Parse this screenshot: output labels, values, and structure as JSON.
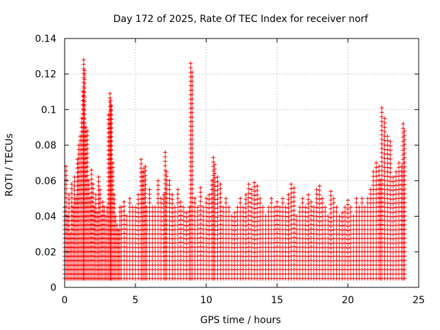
{
  "chart_data": {
    "type": "scatter",
    "title": "Day 172 of 2025, Rate Of TEC Index for receiver norf",
    "xlabel": "GPS time / hours",
    "ylabel": "ROTI / TECUs",
    "xlim": [
      0,
      25
    ],
    "ylim": [
      0,
      0.14
    ],
    "xticks": [
      0,
      5,
      10,
      15,
      20,
      25
    ],
    "xtick_labels": [
      "0",
      "5",
      "10",
      "15",
      "20",
      "25"
    ],
    "yticks": [
      0,
      0.02,
      0.04,
      0.06,
      0.08,
      0.1,
      0.12,
      0.14
    ],
    "ytick_labels": [
      "0",
      "0.02",
      "0.04",
      "0.06",
      "0.08",
      "0.1",
      "0.12",
      "0.14"
    ],
    "grid": true,
    "marker": "+",
    "color": "#ff0000",
    "series": [
      {
        "name": "ROTI",
        "x": [
          0.0,
          0.1,
          0.2,
          0.3,
          0.4,
          0.5,
          0.6,
          0.7,
          0.8,
          0.9,
          1.0,
          1.1,
          1.2,
          1.3,
          1.35,
          1.4,
          1.5,
          1.6,
          1.7,
          1.8,
          1.9,
          2.0,
          2.1,
          2.2,
          2.3,
          2.4,
          2.5,
          2.6,
          2.7,
          2.8,
          2.9,
          3.0,
          3.1,
          3.2,
          3.25,
          3.3,
          3.4,
          3.5,
          3.6,
          3.7,
          3.8,
          3.9,
          4.0,
          4.2,
          4.4,
          4.6,
          4.8,
          5.0,
          5.2,
          5.4,
          5.5,
          5.6,
          5.7,
          5.8,
          6.0,
          6.2,
          6.4,
          6.6,
          6.8,
          7.0,
          7.1,
          7.2,
          7.4,
          7.6,
          7.8,
          8.0,
          8.2,
          8.4,
          8.6,
          8.8,
          8.9,
          9.0,
          9.2,
          9.4,
          9.6,
          9.8,
          10.0,
          10.2,
          10.4,
          10.5,
          10.6,
          10.8,
          11.0,
          11.2,
          11.4,
          11.6,
          11.8,
          12.0,
          12.2,
          12.4,
          12.6,
          12.8,
          13.0,
          13.2,
          13.4,
          13.6,
          13.8,
          14.0,
          14.2,
          14.4,
          14.6,
          14.8,
          15.0,
          15.2,
          15.4,
          15.6,
          15.8,
          16.0,
          16.2,
          16.4,
          16.6,
          16.8,
          17.0,
          17.2,
          17.4,
          17.6,
          17.8,
          18.0,
          18.2,
          18.4,
          18.6,
          18.8,
          19.0,
          19.2,
          19.4,
          19.6,
          19.8,
          20.0,
          20.2,
          20.4,
          20.6,
          20.8,
          21.0,
          21.2,
          21.4,
          21.6,
          21.8,
          22.0,
          22.2,
          22.3,
          22.4,
          22.6,
          22.8,
          23.0,
          23.2,
          23.4,
          23.6,
          23.8,
          23.9,
          24.0
        ],
        "y": [
          0.045,
          0.068,
          0.04,
          0.052,
          0.03,
          0.058,
          0.045,
          0.062,
          0.05,
          0.072,
          0.08,
          0.085,
          0.095,
          0.11,
          0.128,
          0.122,
          0.09,
          0.088,
          0.06,
          0.05,
          0.066,
          0.058,
          0.045,
          0.052,
          0.042,
          0.062,
          0.055,
          0.04,
          0.048,
          0.045,
          0.04,
          0.045,
          0.097,
          0.109,
          0.105,
          0.102,
          0.07,
          0.052,
          0.04,
          0.035,
          0.032,
          0.045,
          0.045,
          0.048,
          0.04,
          0.05,
          0.045,
          0.045,
          0.052,
          0.072,
          0.065,
          0.067,
          0.068,
          0.045,
          0.055,
          0.045,
          0.045,
          0.06,
          0.05,
          0.052,
          0.076,
          0.065,
          0.06,
          0.052,
          0.045,
          0.055,
          0.048,
          0.045,
          0.042,
          0.045,
          0.126,
          0.121,
          0.05,
          0.045,
          0.056,
          0.045,
          0.05,
          0.052,
          0.06,
          0.073,
          0.069,
          0.062,
          0.058,
          0.045,
          0.05,
          0.045,
          0.04,
          0.042,
          0.045,
          0.05,
          0.045,
          0.052,
          0.058,
          0.055,
          0.059,
          0.057,
          0.05,
          0.045,
          0.04,
          0.045,
          0.05,
          0.045,
          0.048,
          0.045,
          0.05,
          0.045,
          0.052,
          0.058,
          0.056,
          0.04,
          0.045,
          0.05,
          0.045,
          0.052,
          0.048,
          0.045,
          0.055,
          0.057,
          0.05,
          0.045,
          0.04,
          0.054,
          0.05,
          0.045,
          0.04,
          0.042,
          0.045,
          0.049,
          0.045,
          0.04,
          0.05,
          0.045,
          0.05,
          0.045,
          0.05,
          0.055,
          0.065,
          0.07,
          0.068,
          0.06,
          0.101,
          0.095,
          0.085,
          0.082,
          0.062,
          0.065,
          0.07,
          0.068,
          0.092,
          0.088
        ]
      }
    ]
  }
}
